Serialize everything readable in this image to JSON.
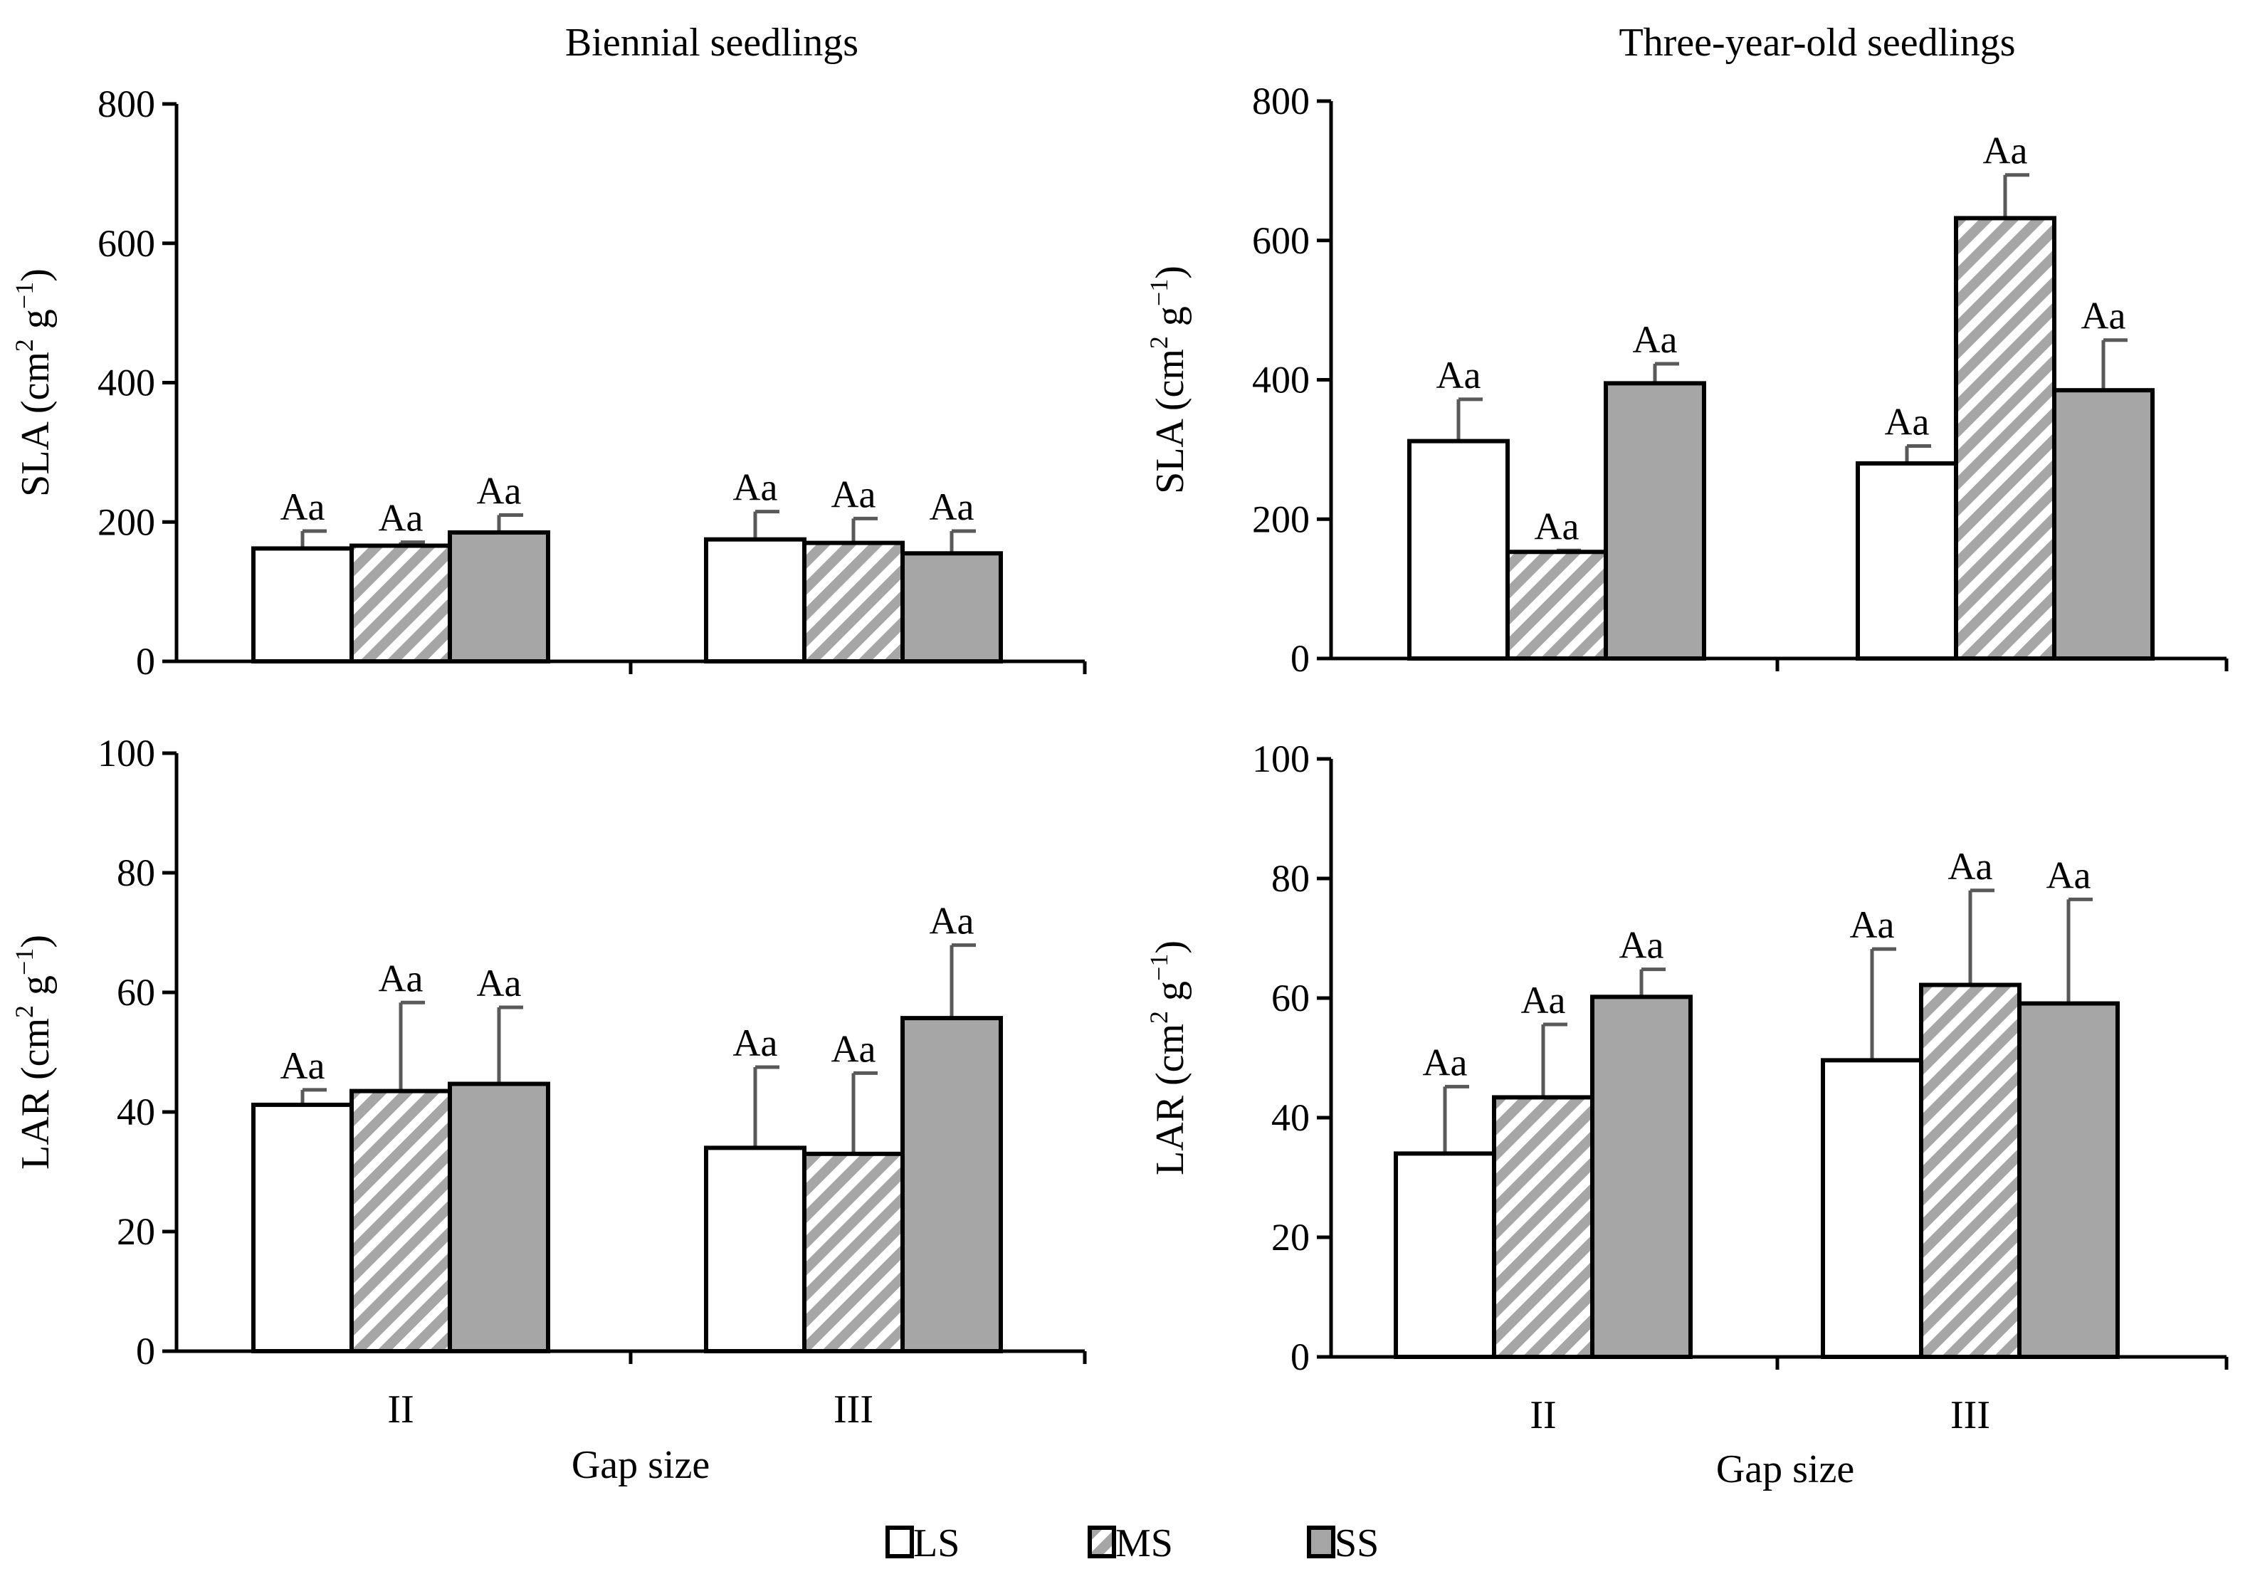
{
  "figure": {
    "legend": {
      "items": [
        {
          "key": "LS",
          "label": "LS"
        },
        {
          "key": "MS",
          "label": "MS"
        },
        {
          "key": "SS",
          "label": "SS"
        }
      ]
    }
  },
  "colors": {
    "LS": "#ffffff",
    "MS_stripe": "#a6a6a6",
    "SS": "#a6a6a6",
    "axis": "#000000",
    "error_bar": "#595959"
  },
  "chart_data": [
    {
      "id": "sla-biennial",
      "type": "bar",
      "title": "Biennial seedlings",
      "xlabel": "",
      "ylabel_main": "SLA (cm",
      "ylabel_sup1": "2",
      "ylabel_mid": " g",
      "ylabel_sup2": "−1",
      "ylabel_end": ")",
      "ylim": [
        0,
        800
      ],
      "yticks": [
        0,
        200,
        400,
        600,
        800
      ],
      "categories": [
        "II",
        "III"
      ],
      "show_categories": false,
      "series": [
        {
          "name": "LS",
          "values": [
            162,
            175
          ],
          "errors": [
            25,
            40
          ],
          "labels": [
            "Aa",
            "Aa"
          ]
        },
        {
          "name": "MS",
          "values": [
            166,
            170
          ],
          "errors": [
            5,
            35
          ],
          "labels": [
            "Aa",
            "Aa"
          ]
        },
        {
          "name": "SS",
          "values": [
            185,
            155
          ],
          "errors": [
            25,
            32
          ],
          "labels": [
            "Aa",
            "Aa"
          ]
        }
      ]
    },
    {
      "id": "sla-three-year",
      "type": "bar",
      "title": "Three-year-old seedlings",
      "xlabel": "",
      "ylabel_main": "SLA (cm",
      "ylabel_sup1": "2",
      "ylabel_mid": " g",
      "ylabel_sup2": "−1",
      "ylabel_end": ")",
      "ylim": [
        0,
        800
      ],
      "yticks": [
        0,
        200,
        400,
        600,
        800
      ],
      "categories": [
        "II",
        "III"
      ],
      "show_categories": false,
      "series": [
        {
          "name": "LS",
          "values": [
            312,
            280
          ],
          "errors": [
            60,
            25
          ],
          "labels": [
            "Aa",
            "Aa"
          ]
        },
        {
          "name": "MS",
          "values": [
            153,
            632
          ],
          "errors": [
            2,
            62
          ],
          "labels": [
            "Aa",
            "Aa"
          ]
        },
        {
          "name": "SS",
          "values": [
            395,
            385
          ],
          "errors": [
            28,
            72
          ],
          "labels": [
            "Aa",
            "Aa"
          ]
        }
      ]
    },
    {
      "id": "lar-biennial",
      "type": "bar",
      "title": "",
      "xlabel": "Gap size",
      "ylabel_main": "LAR (cm",
      "ylabel_sup1": "2",
      "ylabel_mid": " g",
      "ylabel_sup2": "−1",
      "ylabel_end": ")",
      "ylim": [
        0,
        100
      ],
      "yticks": [
        0,
        20,
        40,
        60,
        80,
        100
      ],
      "categories": [
        "II",
        "III"
      ],
      "show_categories": true,
      "series": [
        {
          "name": "LS",
          "values": [
            41.2,
            34.0
          ],
          "errors": [
            2.5,
            13.5
          ],
          "labels": [
            "Aa",
            "Aa"
          ]
        },
        {
          "name": "MS",
          "values": [
            43.5,
            33.0
          ],
          "errors": [
            14.8,
            13.5
          ],
          "labels": [
            "Aa",
            "Aa"
          ]
        },
        {
          "name": "SS",
          "values": [
            44.7,
            55.7
          ],
          "errors": [
            12.8,
            12.2
          ],
          "labels": [
            "Aa",
            "Aa"
          ]
        }
      ]
    },
    {
      "id": "lar-three-year",
      "type": "bar",
      "title": "",
      "xlabel": "Gap size",
      "ylabel_main": "LAR (cm",
      "ylabel_sup1": "2",
      "ylabel_mid": " g",
      "ylabel_sup2": "−1",
      "ylabel_end": ")",
      "ylim": [
        0,
        100
      ],
      "yticks": [
        0,
        20,
        40,
        60,
        80,
        100
      ],
      "categories": [
        "II",
        "III"
      ],
      "show_categories": true,
      "series": [
        {
          "name": "LS",
          "values": [
            34.0,
            49.6
          ],
          "errors": [
            11.2,
            18.6
          ],
          "labels": [
            "Aa",
            "Aa"
          ]
        },
        {
          "name": "MS",
          "values": [
            43.4,
            62.2
          ],
          "errors": [
            12.2,
            15.8
          ],
          "labels": [
            "Aa",
            "Aa"
          ]
        },
        {
          "name": "SS",
          "values": [
            60.2,
            59.1
          ],
          "errors": [
            4.6,
            17.4
          ],
          "labels": [
            "Aa",
            "Aa"
          ]
        }
      ]
    }
  ]
}
